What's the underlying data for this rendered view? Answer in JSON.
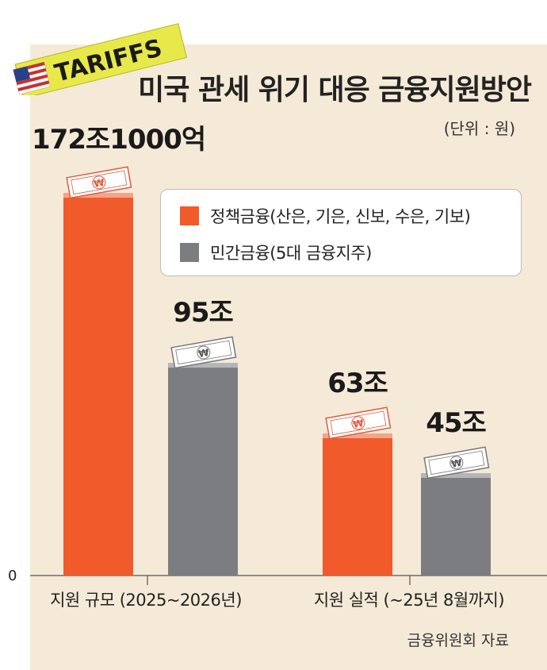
{
  "header": {
    "badge_text": "TARIFFS",
    "title": "미국 관세 위기 대응 금융지원방안",
    "unit": "(단위 : 원)"
  },
  "legend": {
    "items": [
      {
        "label": "정책금융(산은, 기은, 신보, 수은, 기보)",
        "color": "#f15a2b"
      },
      {
        "label": "민간금융(5대 금융지주)",
        "color": "#7c7d80"
      }
    ]
  },
  "source": "금융위원회 자료",
  "colors": {
    "policy": "#f15a2b",
    "private": "#7c7d80",
    "background": "#f5ead7",
    "banner": "#e7e84a"
  },
  "chart_data": {
    "type": "bar",
    "categories": [
      "지원 규모 (2025~2026년)",
      "지원 실적 (~25년 8월까지)"
    ],
    "series": [
      {
        "name": "정책금융(산은, 기은, 신보, 수은, 기보)",
        "values": [
          172.1,
          63
        ],
        "labels": [
          "172조1000억",
          "63조"
        ]
      },
      {
        "name": "민간금융(5대 금융지주)",
        "values": [
          95,
          45
        ],
        "labels": [
          "95조",
          "45조"
        ]
      }
    ],
    "y_tick_labels": [
      "0"
    ],
    "ylim": [
      0,
      185
    ],
    "grid": false,
    "legend_position": "top-right"
  }
}
